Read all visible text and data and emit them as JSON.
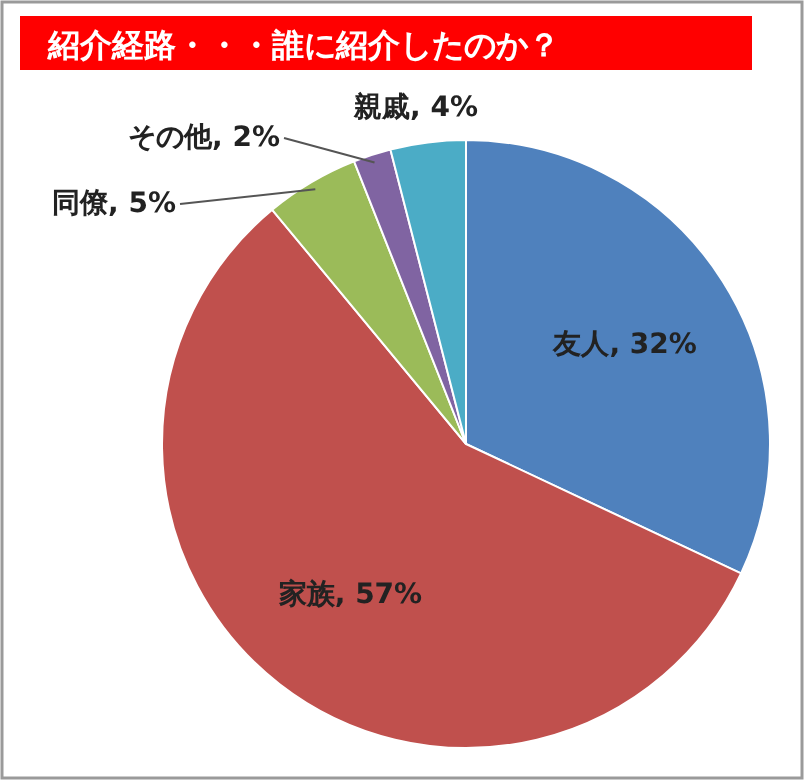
{
  "chart_data": {
    "type": "pie",
    "title": "紹介経路・・・誰に紹介したのか？",
    "categories": [
      "友人",
      "家族",
      "同僚",
      "その他",
      "親戚"
    ],
    "values": [
      32,
      57,
      5,
      2,
      4
    ],
    "colors": [
      "#4f81bd",
      "#c0504d",
      "#9bbb59",
      "#8064a2",
      "#4bacc6"
    ],
    "value_labels": [
      "32%",
      "57%",
      "5%",
      "2%",
      "4%"
    ]
  }
}
